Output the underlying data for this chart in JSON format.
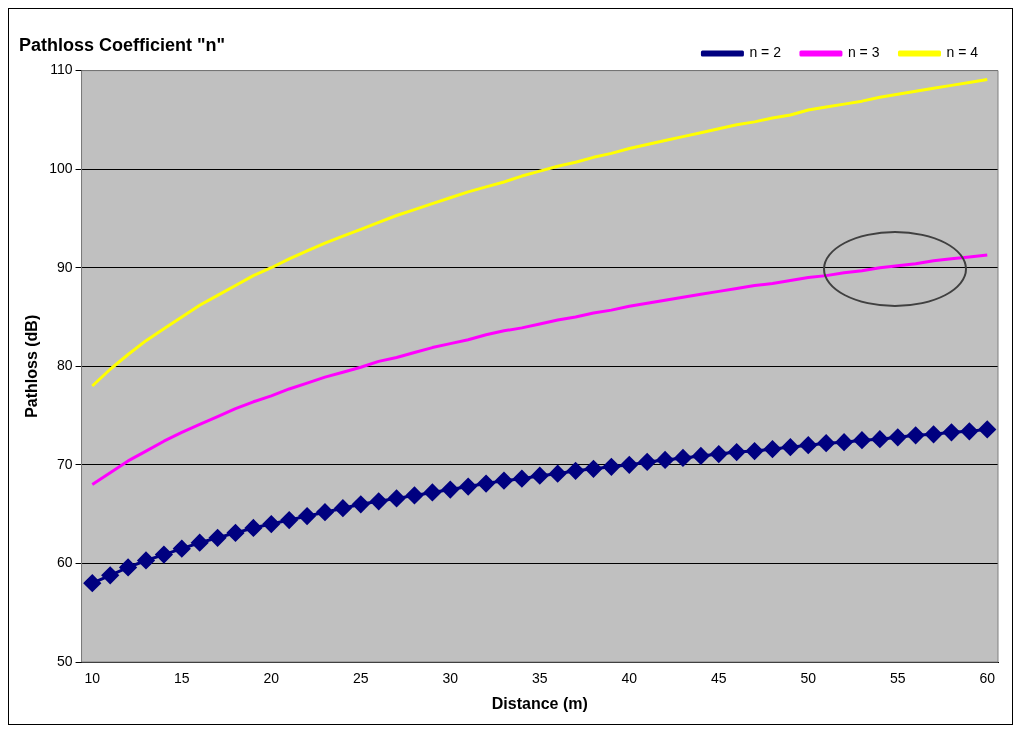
{
  "chart_data": {
    "type": "line",
    "title": "Pathloss Coefficient \"n\"",
    "xlabel": "Distance (m)",
    "ylabel": "Pathloss (dB)",
    "x": [
      10,
      11,
      12,
      13,
      14,
      15,
      16,
      17,
      18,
      19,
      20,
      21,
      22,
      23,
      24,
      25,
      26,
      27,
      28,
      29,
      30,
      31,
      32,
      33,
      34,
      35,
      36,
      37,
      38,
      39,
      40,
      41,
      42,
      43,
      44,
      45,
      46,
      47,
      48,
      49,
      50,
      51,
      52,
      53,
      54,
      55,
      56,
      57,
      58,
      59,
      60
    ],
    "series": [
      {
        "name": "n = 2",
        "color": "#000080",
        "marker": "diamond",
        "values": [
          58.0,
          58.8,
          59.6,
          60.3,
          60.9,
          61.5,
          62.1,
          62.6,
          63.1,
          63.6,
          64.0,
          64.4,
          64.8,
          65.2,
          65.6,
          66.0,
          66.3,
          66.6,
          66.9,
          67.2,
          67.5,
          67.8,
          68.1,
          68.4,
          68.6,
          68.9,
          69.1,
          69.4,
          69.6,
          69.8,
          70.0,
          70.3,
          70.5,
          70.7,
          70.9,
          71.1,
          71.3,
          71.4,
          71.6,
          71.8,
          72.0,
          72.2,
          72.3,
          72.5,
          72.6,
          72.8,
          73.0,
          73.1,
          73.3,
          73.4,
          73.6
        ]
      },
      {
        "name": "n = 3",
        "color": "#ff00ff",
        "marker": "none",
        "values": [
          68.0,
          69.2,
          70.4,
          71.4,
          72.4,
          73.3,
          74.1,
          74.9,
          75.7,
          76.4,
          77.0,
          77.7,
          78.3,
          78.9,
          79.4,
          79.9,
          80.5,
          80.9,
          81.4,
          81.9,
          82.3,
          82.7,
          83.2,
          83.6,
          83.9,
          84.3,
          84.7,
          85.0,
          85.4,
          85.7,
          86.1,
          86.4,
          86.7,
          87.0,
          87.3,
          87.6,
          87.9,
          88.2,
          88.4,
          88.7,
          89.0,
          89.2,
          89.5,
          89.7,
          90.0,
          90.2,
          90.4,
          90.7,
          90.9,
          91.1,
          91.3
        ]
      },
      {
        "name": "n = 4",
        "color": "#ffff00",
        "marker": "none",
        "values": [
          78.0,
          79.7,
          81.2,
          82.6,
          83.8,
          85.0,
          86.2,
          87.2,
          88.2,
          89.2,
          90.0,
          90.9,
          91.7,
          92.5,
          93.2,
          93.9,
          94.6,
          95.3,
          95.9,
          96.5,
          97.1,
          97.7,
          98.2,
          98.7,
          99.3,
          99.8,
          100.3,
          100.7,
          101.2,
          101.6,
          102.1,
          102.5,
          102.9,
          103.3,
          103.7,
          104.1,
          104.5,
          104.8,
          105.2,
          105.5,
          106.0,
          106.3,
          106.6,
          106.9,
          107.3,
          107.6,
          107.9,
          108.2,
          108.5,
          108.8,
          109.1
        ]
      }
    ],
    "xlim": [
      9.4,
      60.6
    ],
    "xticks": [
      10,
      15,
      20,
      25,
      30,
      35,
      40,
      45,
      50,
      55,
      60
    ],
    "ylim": [
      50,
      110
    ],
    "yticks": [
      50,
      60,
      70,
      80,
      90,
      100,
      110
    ],
    "grid": "y",
    "legend": "top right"
  }
}
